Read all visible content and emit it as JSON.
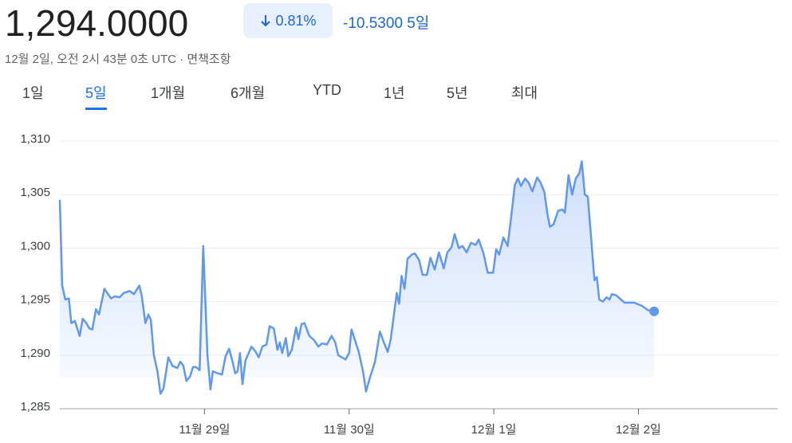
{
  "header": {
    "price": "1,294.0000",
    "change_percent": "0.81%",
    "change": "-10.5300",
    "period": "5일",
    "timestamp": "12월 2일, 오전 2시 43분 0초 UTC · 면책조항"
  },
  "tabs": {
    "items": [
      "1일",
      "5일",
      "1개월",
      "6개월",
      "YTD",
      "1년",
      "5년",
      "최대"
    ],
    "selected": 1
  },
  "chart_data": {
    "type": "line",
    "color": "#5f98ec",
    "x": [
      0,
      0.4,
      0.9,
      1.5,
      1.9,
      2.5,
      3.3,
      3.8,
      4.4,
      4.9,
      5.4,
      6.0,
      6.5,
      7.4,
      8.5,
      9.1,
      9.9,
      10.6,
      11.6,
      12.3,
      13.2,
      13.6,
      14.2,
      14.7,
      15.1,
      15.6,
      16.2,
      16.7,
      17.2,
      18.0,
      18.7,
      19.5,
      20.0,
      20.5,
      21.0,
      21.6,
      22.1,
      22.6,
      23.2,
      23.8,
      24.5,
      25.0,
      25.4,
      26.2,
      26.9,
      27.5,
      28.1,
      28.7,
      29.1,
      29.5,
      29.9,
      30.3,
      30.8,
      31.8,
      32.4,
      33.0,
      33.6,
      34.3,
      34.8,
      35.5,
      36.1,
      36.5,
      36.9,
      37.5,
      37.9,
      38.5,
      39.2,
      39.6,
      40.1,
      40.6,
      41.4,
      42.2,
      42.9,
      43.5,
      44.3,
      45.1,
      45.7,
      46.2,
      47.4,
      48.0,
      48.4,
      49.6,
      50.3,
      50.8,
      51.5,
      52.3,
      53.1,
      53.9,
      54.4,
      54.9,
      55.9,
      56.3,
      56.7,
      57.2,
      57.7,
      58.4,
      58.9,
      59.6,
      60.2,
      60.9,
      61.5,
      62.2,
      62.9,
      63.7,
      64.3,
      65.0,
      65.5,
      66.2,
      66.8,
      67.5,
      68.2,
      69.0,
      69.5,
      70.3,
      71.0,
      71.9,
      72.4,
      72.9,
      73.6,
      74.3,
      74.9,
      75.5,
      76.0,
      76.5,
      77.2,
      77.8,
      78.4,
      79.2,
      79.8,
      80.4,
      80.9,
      81.3,
      81.9,
      82.7,
      83.4,
      83.8,
      84.4,
      85.0,
      85.6,
      86.2,
      86.6,
      87.1,
      87.6,
      88.0,
      88.7,
      89.1,
      89.5,
      90.1,
      90.7,
      91.2,
      91.6,
      92.3,
      93.1,
      93.7,
      95.3,
      96.6,
      97.6,
      98.6
    ],
    "values": [
      1304.5,
      1296.5,
      1295.2,
      1295.3,
      1293.0,
      1293.2,
      1291.8,
      1293.4,
      1293.0,
      1292.5,
      1292.4,
      1294.3,
      1293.8,
      1296.2,
      1295.3,
      1295.5,
      1295.4,
      1295.8,
      1296.0,
      1295.7,
      1296.5,
      1295.5,
      1293.0,
      1293.8,
      1293.3,
      1290.0,
      1288.5,
      1286.4,
      1286.9,
      1289.8,
      1289.0,
      1288.8,
      1289.4,
      1289.0,
      1287.6,
      1288.0,
      1288.9,
      1288.9,
      1288.6,
      1300.2,
      1290.0,
      1286.8,
      1288.5,
      1288.3,
      1288.2,
      1289.9,
      1290.6,
      1289.3,
      1288.3,
      1288.5,
      1290.2,
      1287.3,
      1289.5,
      1290.8,
      1290.4,
      1289.8,
      1290.8,
      1291.0,
      1292.7,
      1292.5,
      1290.5,
      1291.2,
      1290.2,
      1291.6,
      1289.9,
      1290.5,
      1292.6,
      1291.5,
      1292.9,
      1293.0,
      1291.8,
      1291.4,
      1290.8,
      1291.1,
      1291.0,
      1291.8,
      1291.2,
      1290.0,
      1289.6,
      1290.2,
      1292.4,
      1290.3,
      1288.5,
      1286.6,
      1288.0,
      1289.4,
      1292.2,
      1291.0,
      1290.3,
      1291.5,
      1295.8,
      1294.8,
      1297.4,
      1296.2,
      1299.0,
      1299.4,
      1299.5,
      1298.9,
      1297.5,
      1297.5,
      1299.1,
      1298.0,
      1299.6,
      1298.1,
      1299.6,
      1300.1,
      1301.3,
      1300.0,
      1300.2,
      1299.6,
      1300.5,
      1300.3,
      1300.8,
      1299.5,
      1297.7,
      1297.7,
      1299.9,
      1299.4,
      1301.0,
      1300.2,
      1303.0,
      1305.9,
      1306.5,
      1305.8,
      1306.5,
      1306.1,
      1305.3,
      1306.6,
      1306.1,
      1305.2,
      1303.2,
      1302.0,
      1302.2,
      1303.5,
      1303.6,
      1303.3,
      1306.8,
      1305.0,
      1306.5,
      1307.0,
      1308.1,
      1305.0,
      1304.8,
      1302.0,
      1297.0,
      1297.3,
      1295.2,
      1295.0,
      1295.4,
      1295.2,
      1295.7,
      1295.6,
      1295.2,
      1294.9,
      1294.9,
      1294.6,
      1294.2,
      1294.1
    ],
    "xlim": [
      0,
      119.1
    ],
    "xticks": [
      {
        "value": 24,
        "label": "11월 29일"
      },
      {
        "value": 48,
        "label": "11월 30일"
      },
      {
        "value": 72,
        "label": "12월 1일"
      },
      {
        "value": 96,
        "label": "12월 2일"
      }
    ],
    "ylim": [
      1285,
      1312
    ],
    "yticks": [
      {
        "value": 1285,
        "label": "1,285"
      },
      {
        "value": 1290,
        "label": "1,290"
      },
      {
        "value": 1295,
        "label": "1,295"
      },
      {
        "value": 1300,
        "label": "1,300"
      },
      {
        "value": 1305,
        "label": "1,305"
      },
      {
        "value": 1310,
        "label": "1,310"
      }
    ],
    "grid": true
  }
}
